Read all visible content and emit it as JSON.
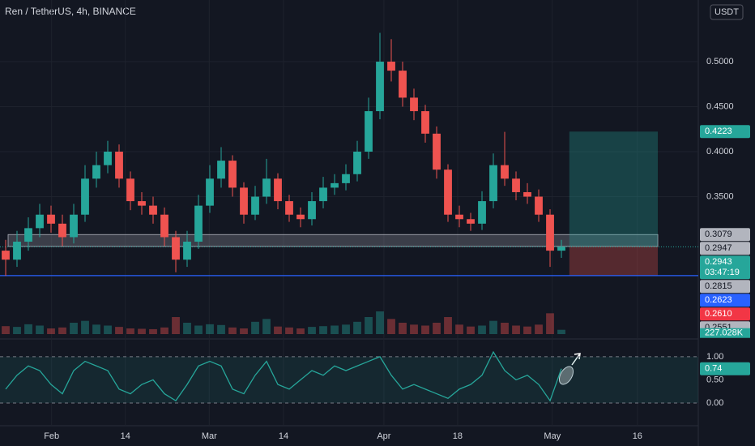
{
  "chart_data": {
    "type": "candlestick",
    "title": "Ren / TetherUS, 4h, BINANCE",
    "currency": "USDT",
    "x": [
      1,
      3,
      5,
      7,
      9,
      11,
      13,
      15,
      17,
      19,
      21,
      23,
      25,
      27,
      29,
      31,
      33,
      35,
      37,
      39,
      41,
      43,
      45,
      47,
      49,
      51,
      53,
      55,
      57,
      59,
      61,
      63,
      65,
      67,
      69,
      71,
      73,
      75,
      77,
      79,
      81,
      83,
      85,
      87,
      89,
      91,
      93,
      95,
      97,
      99
    ],
    "opens": [
      0.29,
      0.28,
      0.3,
      0.315,
      0.33,
      0.32,
      0.305,
      0.33,
      0.37,
      0.385,
      0.4,
      0.37,
      0.345,
      0.34,
      0.33,
      0.305,
      0.28,
      0.3,
      0.34,
      0.37,
      0.39,
      0.36,
      0.33,
      0.35,
      0.37,
      0.345,
      0.33,
      0.325,
      0.345,
      0.36,
      0.365,
      0.375,
      0.4,
      0.445,
      0.5,
      0.49,
      0.46,
      0.445,
      0.42,
      0.38,
      0.33,
      0.325,
      0.32,
      0.345,
      0.385,
      0.37,
      0.355,
      0.35,
      0.33,
      0.29
    ],
    "highs": [
      0.302,
      0.312,
      0.327,
      0.342,
      0.34,
      0.33,
      0.342,
      0.385,
      0.4,
      0.412,
      0.408,
      0.378,
      0.355,
      0.35,
      0.338,
      0.312,
      0.312,
      0.352,
      0.385,
      0.405,
      0.396,
      0.366,
      0.362,
      0.392,
      0.376,
      0.352,
      0.338,
      0.355,
      0.372,
      0.375,
      0.386,
      0.412,
      0.46,
      0.532,
      0.525,
      0.5,
      0.47,
      0.452,
      0.428,
      0.386,
      0.34,
      0.332,
      0.356,
      0.398,
      0.422,
      0.378,
      0.365,
      0.358,
      0.336,
      0.302
    ],
    "lows": [
      0.262,
      0.272,
      0.29,
      0.305,
      0.31,
      0.295,
      0.298,
      0.322,
      0.36,
      0.376,
      0.36,
      0.335,
      0.33,
      0.32,
      0.295,
      0.266,
      0.272,
      0.292,
      0.332,
      0.36,
      0.35,
      0.32,
      0.324,
      0.342,
      0.336,
      0.322,
      0.316,
      0.318,
      0.337,
      0.352,
      0.357,
      0.367,
      0.392,
      0.436,
      0.478,
      0.45,
      0.435,
      0.41,
      0.37,
      0.322,
      0.316,
      0.312,
      0.313,
      0.337,
      0.362,
      0.346,
      0.342,
      0.322,
      0.272,
      0.282
    ],
    "closes": [
      0.28,
      0.3,
      0.315,
      0.33,
      0.32,
      0.305,
      0.33,
      0.37,
      0.385,
      0.4,
      0.37,
      0.345,
      0.34,
      0.33,
      0.305,
      0.28,
      0.3,
      0.34,
      0.37,
      0.39,
      0.36,
      0.33,
      0.35,
      0.37,
      0.345,
      0.33,
      0.325,
      0.345,
      0.36,
      0.365,
      0.375,
      0.4,
      0.445,
      0.5,
      0.49,
      0.46,
      0.445,
      0.42,
      0.38,
      0.33,
      0.325,
      0.32,
      0.345,
      0.385,
      0.37,
      0.355,
      0.35,
      0.33,
      0.29,
      0.2943
    ],
    "colors": {
      "up": "#26a69a",
      "down": "#ef5350",
      "background": "#131722"
    },
    "xlim": [
      0,
      123.14
    ],
    "xticks": [
      {
        "value": 9.1,
        "label": "Feb"
      },
      {
        "value": 22.1,
        "label": "14"
      },
      {
        "value": 36.9,
        "label": "Mar"
      },
      {
        "value": 50,
        "label": "14"
      },
      {
        "value": 67.7,
        "label": "Apr"
      },
      {
        "value": 80.7,
        "label": "18"
      },
      {
        "value": 97.4,
        "label": "May"
      },
      {
        "value": 112.4,
        "label": "16"
      }
    ],
    "ylim": [
      0.1991,
      0.5685
    ],
    "yticks": [
      {
        "value": 0.5,
        "label": "0.5000"
      },
      {
        "value": 0.45,
        "label": "0.4500"
      },
      {
        "value": 0.4,
        "label": "0.4000"
      },
      {
        "value": 0.35,
        "label": "0.3500"
      }
    ],
    "grid": true,
    "volume": {
      "values": [
        420,
        380,
        520,
        450,
        300,
        350,
        600,
        700,
        500,
        450,
        380,
        300,
        280,
        260,
        350,
        900,
        600,
        450,
        520,
        480,
        350,
        300,
        650,
        800,
        400,
        350,
        300,
        380,
        420,
        450,
        500,
        650,
        900,
        1200,
        800,
        600,
        500,
        450,
        600,
        900,
        500,
        400,
        450,
        700,
        600,
        450,
        400,
        500,
        1100,
        227.028
      ],
      "ylim": [
        0,
        3000
      ],
      "last": {
        "value": 227.028,
        "label": "227.028K"
      }
    },
    "support_zone": [
      0.3079,
      0.2947
    ],
    "level_line": 0.2623,
    "position": {
      "x": [
        100.4,
        116
      ],
      "target": 0.4223,
      "entry": 0.2947,
      "stop": 0.2623
    },
    "last_price": {
      "value": 0.2943,
      "label": "0.2943",
      "countdown": "03:47:19"
    },
    "price_labels": [
      {
        "value": 0.4223,
        "label": "0.4223",
        "color": "#26a69a"
      },
      {
        "value": 0.3079,
        "label": "0.3079",
        "color": "#b2b5be"
      },
      {
        "value": 0.2947,
        "label": "0.2947",
        "color": "#b2b5be"
      },
      {
        "value": 0.2815,
        "label": "0.2815",
        "color": "#b2b5be"
      },
      {
        "value": 0.2623,
        "label": "0.2623",
        "color": "#2962ff"
      },
      {
        "value": 0.261,
        "label": "0.2610",
        "color": "#f23645"
      },
      {
        "value": 0.2551,
        "label": "0.2551",
        "color": "#b2b5be"
      }
    ],
    "oscillator": {
      "values": [
        0.3,
        0.6,
        0.8,
        0.7,
        0.4,
        0.2,
        0.7,
        0.9,
        0.8,
        0.7,
        0.3,
        0.2,
        0.4,
        0.5,
        0.2,
        0.05,
        0.4,
        0.8,
        0.9,
        0.8,
        0.3,
        0.2,
        0.6,
        0.9,
        0.4,
        0.3,
        0.5,
        0.7,
        0.6,
        0.8,
        0.7,
        0.8,
        0.9,
        1.0,
        0.6,
        0.3,
        0.4,
        0.3,
        0.2,
        0.1,
        0.3,
        0.4,
        0.6,
        1.1,
        0.7,
        0.5,
        0.6,
        0.4,
        0.05,
        0.74
      ],
      "color": "#26a69a",
      "ylim": [
        -0.49,
        1.26
      ],
      "yticks": [
        {
          "value": 1,
          "label": "1.00"
        },
        {
          "value": 0.5,
          "label": "0.50"
        },
        {
          "value": 0,
          "label": "0.00"
        }
      ],
      "band": [
        0,
        1
      ],
      "last": {
        "value": 0.74,
        "label": "0.74"
      }
    }
  }
}
